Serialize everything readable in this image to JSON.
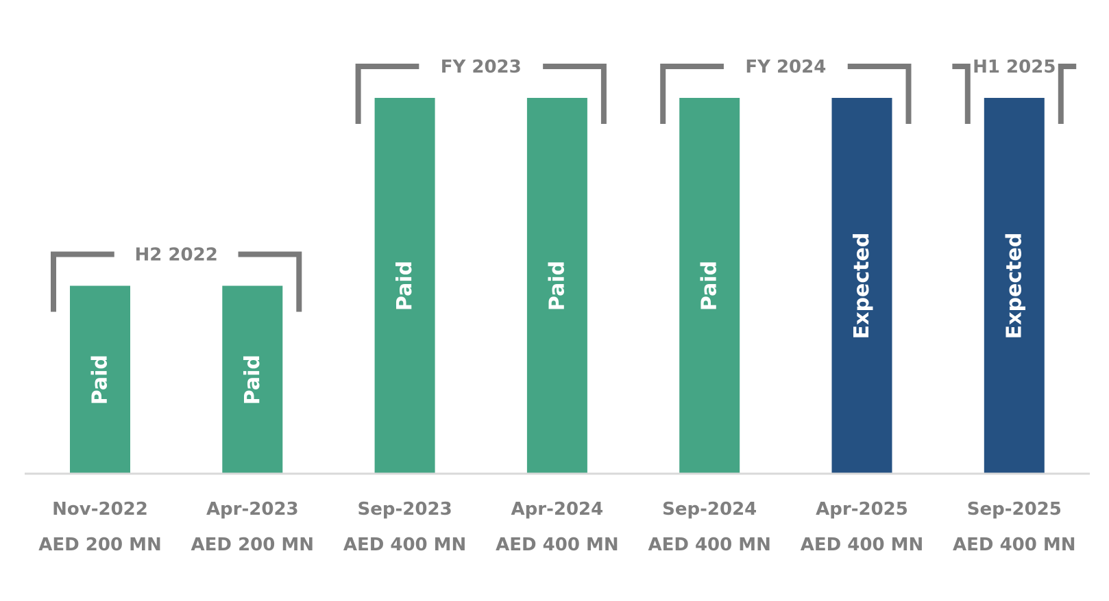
{
  "chart_data": {
    "type": "bar",
    "categories": [
      "Nov-2022",
      "Apr-2023",
      "Sep-2023",
      "Apr-2024",
      "Sep-2024",
      "Apr-2025",
      "Sep-2025"
    ],
    "amount_labels": [
      "AED 200 MN",
      "AED 200 MN",
      "AED 400 MN",
      "AED 400 MN",
      "AED 400 MN",
      "AED 400 MN",
      "AED 400 MN"
    ],
    "values": [
      200,
      200,
      400,
      400,
      400,
      400,
      400
    ],
    "units": "AED MN",
    "status_labels": [
      "Paid",
      "Paid",
      "Paid",
      "Paid",
      "Paid",
      "Expected",
      "Expected"
    ],
    "status_colors": {
      "Paid": "#45a585",
      "Expected": "#255182"
    },
    "groups": [
      {
        "label": "H2 2022",
        "start": 0,
        "end": 1
      },
      {
        "label": "FY 2023",
        "start": 2,
        "end": 3
      },
      {
        "label": "FY 2024",
        "start": 4,
        "end": 5
      },
      {
        "label": "H1 2025",
        "start": 6,
        "end": 6
      }
    ],
    "ylim": [
      0,
      400
    ],
    "grid": false,
    "legend": "none"
  }
}
